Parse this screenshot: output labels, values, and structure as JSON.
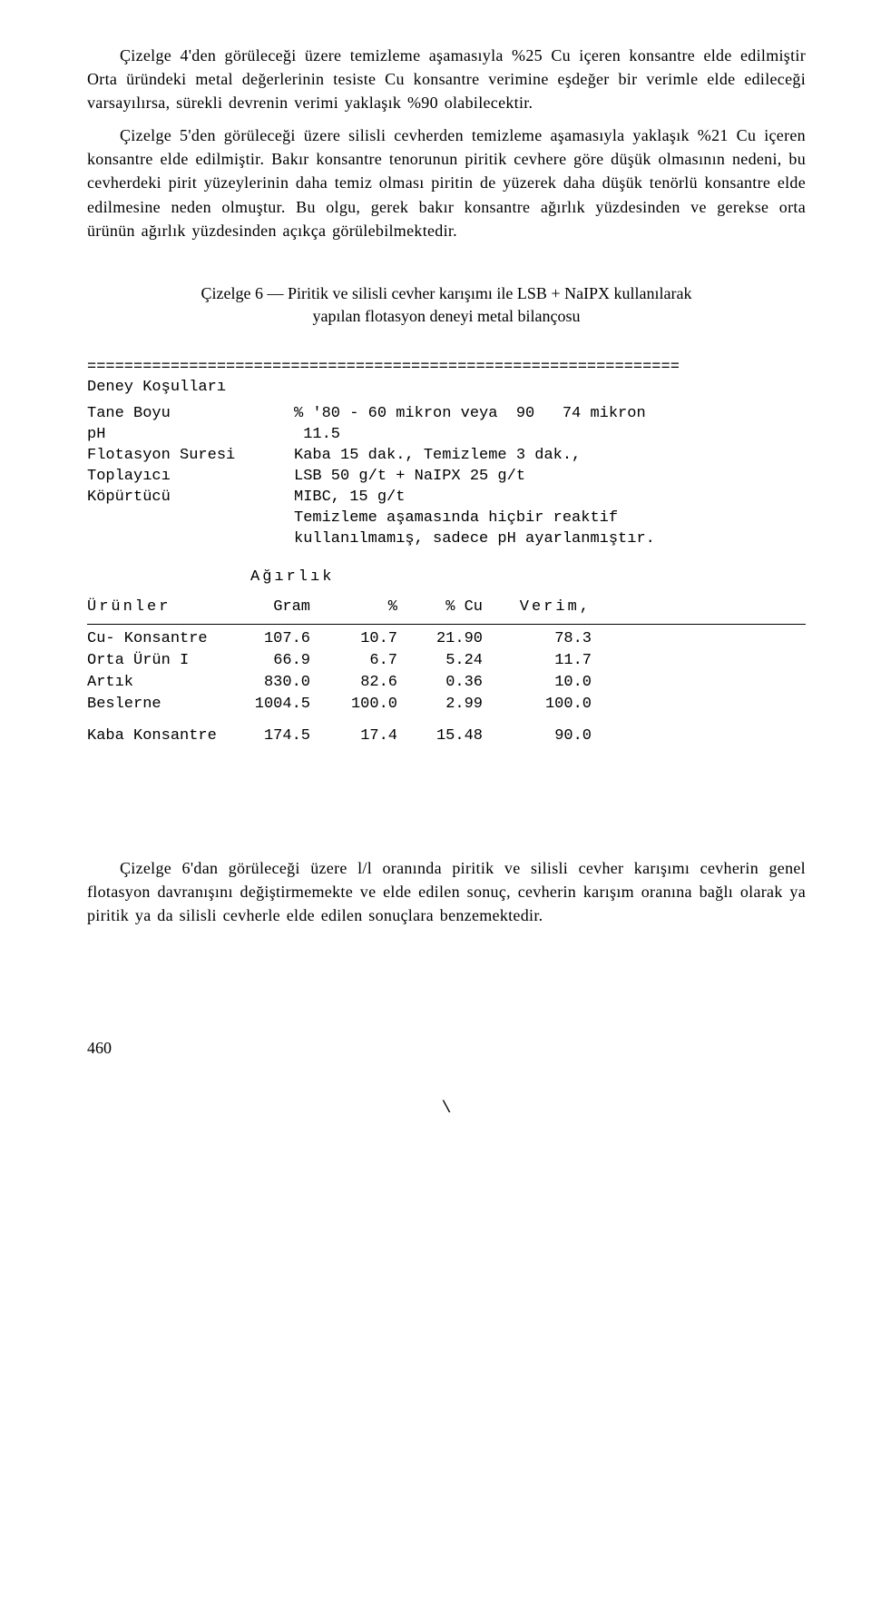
{
  "paragraph1": "Çizelge 4'den görüleceği üzere temizleme aşamasıyla %25 Cu içeren konsantre elde edilmiştir Orta üründeki metal değerlerinin tesiste Cu konsantre verimine eşdeğer bir verimle elde edileceği varsayılırsa, sürekli devrenin verimi yaklaşık %90 olabilecektir.",
  "paragraph2": "Çizelge 5'den görüleceği üzere silisli cevherden temizleme aşamasıyla yaklaşık %21 Cu içeren konsantre elde edilmiştir. Bakır konsantre tenorunun piritik cevhere göre düşük olmasının nedeni, bu cevherdeki pirit yüzeylerinin daha temiz olması piritin de yüzerek daha düşük tenörlü konsantre elde edilmesine neden olmuştur. Bu olgu, gerek bakır konsantre ağırlık yüzdesinden ve gerekse orta ürünün ağırlık yüzdesinden açıkça görülebilmektedir.",
  "caption_line1": "Çizelge 6 — Piritik ve silisli cevher karışımı ile LSB + NaIPX kullanılarak",
  "caption_line2": "yapılan flotasyon deneyi metal bilançosu",
  "separator": "================================================================",
  "deney_kosullari_label": "Deney Koşulları",
  "conditions": {
    "tane_boyu_label": "Tane Boyu",
    "tane_boyu_value": "% '80 - 60 mikron veya  90   74 mikron",
    "ph_label": "pH",
    "ph_value": " 11.5",
    "flotasyon_label": "Flotasyon Suresi",
    "flotasyon_value": "Kaba 15 dak., Temizleme 3 dak.,",
    "toplayici_label": "Toplayıcı",
    "toplayici_value": "LSB 50 g/t + NaIPX 25 g/t",
    "kopurtucu_label": "Köpürtücü",
    "kopurtucu_value": "MIBC, 15 g/t",
    "extra_line1": "Temizleme aşamasında hiçbir reaktif",
    "extra_line2": "kullanılmamış, sadece pH ayarlanmıştır."
  },
  "table_header": {
    "agirlik": "Ağırlık",
    "urunler": "Ürünler",
    "gram": "Gram",
    "pct": "%",
    "pct_cu": "% Cu",
    "verim": "Verim,"
  },
  "rows": [
    {
      "label": "Cu- Konsantre",
      "gram": "107.6",
      "pct": "10.7",
      "cu": "21.90",
      "verim": "78.3"
    },
    {
      "label": "Orta Ürün I",
      "gram": "66.9",
      "pct": "6.7",
      "cu": "5.24",
      "verim": "11.7"
    },
    {
      "label": "Artık",
      "gram": "830.0",
      "pct": "82.6",
      "cu": "0.36",
      "verim": "10.0"
    },
    {
      "label": "Beslerne",
      "gram": "1004.5",
      "pct": "100.0",
      "cu": "2.99",
      "verim": "100.0"
    }
  ],
  "kaba_row": {
    "label": "Kaba Konsantre",
    "gram": "174.5",
    "pct": "17.4",
    "cu": "15.48",
    "verim": "90.0"
  },
  "paragraph3": "Çizelge 6'dan görüleceği üzere l/l oranında piritik ve silisli cevher karışımı cevherin genel flotasyon davranışını değiştirmemekte ve elde edilen sonuç, cevherin karışım oranına bağlı olarak ya piritik ya da silisli cevherle elde edilen sonuçlara benzemektedir.",
  "page_number": "460",
  "backslash": "\\"
}
